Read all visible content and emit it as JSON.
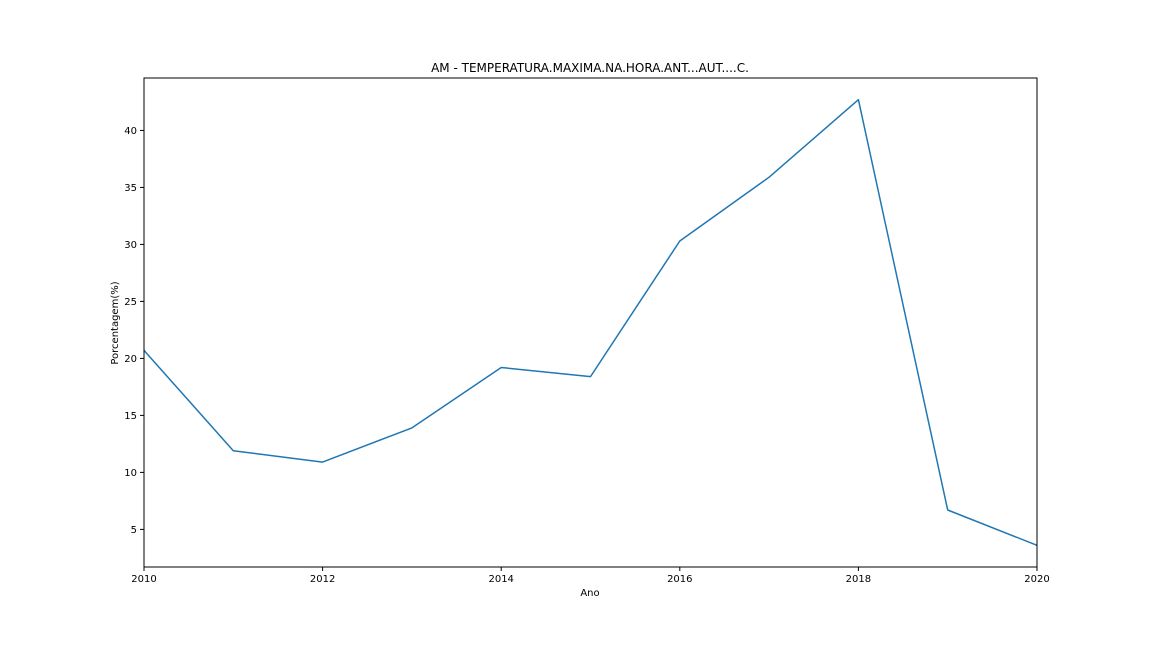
{
  "chart_data": {
    "type": "line",
    "title": "AM - TEMPERATURA.MAXIMA.NA.HORA.ANT...AUT....C.",
    "xlabel": "Ano",
    "ylabel": "Porcentagem(%)",
    "xlim": [
      2010,
      2020
    ],
    "ylim": [
      1.7,
      44.6
    ],
    "xticks": [
      2010,
      2012,
      2014,
      2016,
      2018,
      2020
    ],
    "yticks": [
      5,
      10,
      15,
      20,
      25,
      30,
      35,
      40
    ],
    "grid": false,
    "legend": "none",
    "series": [
      {
        "color": "#1f77b4",
        "x": [
          2010,
          2011,
          2012,
          2013,
          2014,
          2015,
          2016,
          2017,
          2018,
          2019,
          2020
        ],
        "y": [
          20.7,
          11.9,
          10.9,
          13.9,
          19.2,
          18.4,
          30.3,
          35.9,
          42.7,
          6.7,
          3.6
        ]
      }
    ]
  }
}
